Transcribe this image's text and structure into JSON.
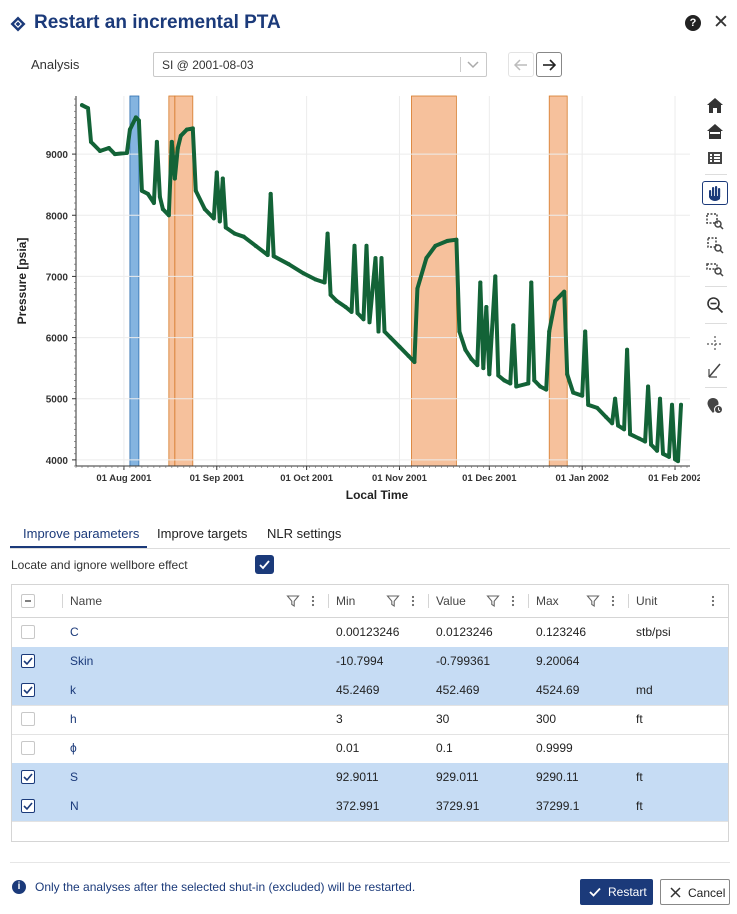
{
  "dialog": {
    "title": "Restart an incremental PTA",
    "help_label": "?",
    "close_label": "✕"
  },
  "analysis": {
    "label": "Analysis",
    "selected": "SI @ 2001-08-03"
  },
  "chart_data": {
    "type": "line",
    "ylabel": "Pressure [psia]",
    "xlabel": "Local Time",
    "ylim": [
      3900,
      9950
    ],
    "xlim": [
      "2001-07-16",
      "2002-02-06"
    ],
    "yticks": [
      4000,
      5000,
      6000,
      7000,
      8000,
      9000
    ],
    "xticks": [
      {
        "date": "2001-08-01",
        "label": "01 Aug 2001"
      },
      {
        "date": "2001-09-01",
        "label": "01 Sep 2001"
      },
      {
        "date": "2001-10-01",
        "label": "01 Oct 2001"
      },
      {
        "date": "2001-11-01",
        "label": "01 Nov 2001"
      },
      {
        "date": "2001-12-01",
        "label": "01 Dec 2001"
      },
      {
        "date": "2002-01-01",
        "label": "01 Jan 2002"
      },
      {
        "date": "2002-02-01",
        "label": "01 Feb 2002"
      }
    ],
    "grid": true,
    "series_color": "#136337",
    "selected_color": "#5b9bd5",
    "excluded_color": "#f4b183",
    "shut_ins": [
      {
        "start": "2001-08-03",
        "end": "2001-08-06",
        "state": "selected"
      },
      {
        "start": "2001-08-16",
        "end": "2001-08-18",
        "state": "excluded"
      },
      {
        "start": "2001-08-18",
        "end": "2001-08-24",
        "state": "excluded"
      },
      {
        "start": "2001-11-05",
        "end": "2001-11-20",
        "state": "excluded"
      },
      {
        "start": "2001-12-21",
        "end": "2001-12-27",
        "state": "excluded"
      }
    ],
    "points": [
      [
        "2001-07-18",
        9800
      ],
      [
        "2001-07-20",
        9750
      ],
      [
        "2001-07-21",
        9200
      ],
      [
        "2001-07-24",
        9050
      ],
      [
        "2001-07-27",
        9100
      ],
      [
        "2001-07-29",
        9000
      ],
      [
        "2001-08-02",
        9020
      ],
      [
        "2001-08-03",
        9400
      ],
      [
        "2001-08-05",
        9600
      ],
      [
        "2001-08-06",
        9550
      ],
      [
        "2001-08-07",
        8400
      ],
      [
        "2001-08-09",
        8350
      ],
      [
        "2001-08-11",
        8200
      ],
      [
        "2001-08-12",
        9200
      ],
      [
        "2001-08-13",
        8300
      ],
      [
        "2001-08-14",
        8100
      ],
      [
        "2001-08-16",
        8000
      ],
      [
        "2001-08-17",
        9200
      ],
      [
        "2001-08-18",
        8600
      ],
      [
        "2001-08-19",
        9100
      ],
      [
        "2001-08-20",
        9300
      ],
      [
        "2001-08-22",
        9400
      ],
      [
        "2001-08-24",
        9420
      ],
      [
        "2001-08-25",
        8400
      ],
      [
        "2001-08-28",
        8100
      ],
      [
        "2001-08-31",
        7950
      ],
      [
        "2001-09-01",
        8700
      ],
      [
        "2001-09-02",
        7900
      ],
      [
        "2001-09-03",
        8600
      ],
      [
        "2001-09-04",
        7800
      ],
      [
        "2001-09-07",
        7700
      ],
      [
        "2001-09-10",
        7650
      ],
      [
        "2001-09-14",
        7500
      ],
      [
        "2001-09-18",
        7350
      ],
      [
        "2001-09-19",
        8350
      ],
      [
        "2001-09-20",
        7330
      ],
      [
        "2001-09-25",
        7200
      ],
      [
        "2001-09-30",
        7050
      ],
      [
        "2001-10-04",
        6950
      ],
      [
        "2001-10-07",
        6900
      ],
      [
        "2001-10-08",
        7700
      ],
      [
        "2001-10-09",
        6700
      ],
      [
        "2001-10-11",
        6600
      ],
      [
        "2001-10-14",
        6500
      ],
      [
        "2001-10-16",
        6420
      ],
      [
        "2001-10-17",
        7500
      ],
      [
        "2001-10-18",
        6400
      ],
      [
        "2001-10-20",
        6300
      ],
      [
        "2001-10-21",
        7500
      ],
      [
        "2001-10-22",
        6250
      ],
      [
        "2001-10-24",
        7300
      ],
      [
        "2001-10-25",
        6100
      ],
      [
        "2001-10-26",
        7300
      ],
      [
        "2001-10-27",
        6100
      ],
      [
        "2001-10-29",
        6000
      ],
      [
        "2001-11-01",
        5850
      ],
      [
        "2001-11-04",
        5700
      ],
      [
        "2001-11-06",
        5600
      ],
      [
        "2001-11-07",
        6800
      ],
      [
        "2001-11-10",
        7300
      ],
      [
        "2001-11-13",
        7500
      ],
      [
        "2001-11-17",
        7580
      ],
      [
        "2001-11-20",
        7600
      ],
      [
        "2001-11-21",
        6100
      ],
      [
        "2001-11-23",
        5800
      ],
      [
        "2001-11-25",
        5650
      ],
      [
        "2001-11-27",
        5550
      ],
      [
        "2001-11-28",
        6900
      ],
      [
        "2001-11-29",
        5500
      ],
      [
        "2001-11-30",
        6500
      ],
      [
        "2001-12-01",
        5400
      ],
      [
        "2001-12-03",
        7000
      ],
      [
        "2001-12-04",
        5380
      ],
      [
        "2001-12-06",
        5300
      ],
      [
        "2001-12-08",
        5250
      ],
      [
        "2001-12-09",
        6200
      ],
      [
        "2001-12-10",
        5200
      ],
      [
        "2001-12-14",
        5250
      ],
      [
        "2001-12-15",
        6900
      ],
      [
        "2001-12-16",
        5300
      ],
      [
        "2001-12-18",
        5200
      ],
      [
        "2001-12-20",
        5150
      ],
      [
        "2001-12-21",
        6100
      ],
      [
        "2001-12-23",
        6600
      ],
      [
        "2001-12-26",
        6750
      ],
      [
        "2001-12-27",
        5400
      ],
      [
        "2001-12-29",
        5100
      ],
      [
        "2002-01-01",
        5050
      ],
      [
        "2002-01-02",
        6100
      ],
      [
        "2002-01-03",
        4900
      ],
      [
        "2002-01-06",
        4850
      ],
      [
        "2002-01-09",
        4700
      ],
      [
        "2002-01-11",
        4600
      ],
      [
        "2002-01-12",
        5000
      ],
      [
        "2002-01-13",
        4560
      ],
      [
        "2002-01-15",
        4500
      ],
      [
        "2002-01-16",
        5800
      ],
      [
        "2002-01-17",
        4420
      ],
      [
        "2002-01-20",
        4350
      ],
      [
        "2002-01-22",
        4300
      ],
      [
        "2002-01-23",
        5200
      ],
      [
        "2002-01-24",
        4250
      ],
      [
        "2002-01-26",
        4150
      ],
      [
        "2002-01-27",
        5000
      ],
      [
        "2002-01-28",
        4100
      ],
      [
        "2002-01-30",
        4050
      ],
      [
        "2002-01-31",
        4900
      ],
      [
        "2002-02-01",
        4010
      ],
      [
        "2002-02-02",
        3980
      ],
      [
        "2002-02-03",
        4900
      ]
    ]
  },
  "tabs": [
    {
      "label": "Improve parameters",
      "active": true
    },
    {
      "label": "Improve targets",
      "active": false
    },
    {
      "label": "NLR settings",
      "active": false
    }
  ],
  "locate": {
    "label": "Locate and ignore wellbore effect",
    "checked": true
  },
  "grid": {
    "columns": [
      "Name",
      "Min",
      "Value",
      "Max",
      "Unit"
    ],
    "rows": [
      {
        "selected": false,
        "name": "C",
        "min": "0.00123246",
        "value": "0.0123246",
        "max": "0.123246",
        "unit": "stb/psi"
      },
      {
        "selected": true,
        "name": "Skin",
        "min": "-10.7994",
        "value": "-0.799361",
        "max": "9.20064",
        "unit": ""
      },
      {
        "selected": true,
        "name": "k",
        "min": "45.2469",
        "value": "452.469",
        "max": "4524.69",
        "unit": "md"
      },
      {
        "selected": false,
        "name": "h",
        "min": "3",
        "value": "30",
        "max": "300",
        "unit": "ft"
      },
      {
        "selected": false,
        "name": "ϕ",
        "min": "0.01",
        "value": "0.1",
        "max": "0.9999",
        "unit": ""
      },
      {
        "selected": true,
        "name": "S",
        "min": "92.9011",
        "value": "929.011",
        "max": "9290.11",
        "unit": "ft"
      },
      {
        "selected": true,
        "name": "N",
        "min": "372.991",
        "value": "3729.91",
        "max": "37299.1",
        "unit": "ft"
      }
    ]
  },
  "footer": {
    "info": "Only the analyses after the selected shut-in (excluded) will be restarted.",
    "restart_label": "Restart",
    "cancel_label": "Cancel"
  },
  "toolbar_icons": [
    "home-icon",
    "home-icon",
    "list-icon",
    "pan-hand-icon",
    "zoom-box-icon",
    "zoom-x-icon",
    "zoom-y-icon",
    "zoom-out-icon",
    "crosshair-icon",
    "line-tool-icon",
    "marker-icon"
  ]
}
